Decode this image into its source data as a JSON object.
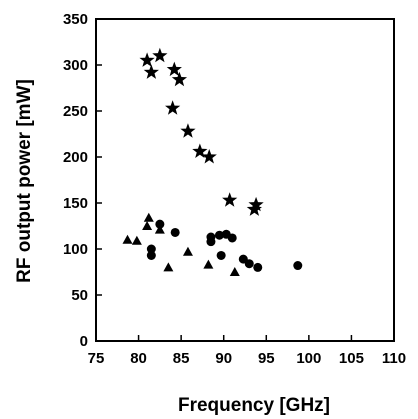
{
  "chart_data": {
    "type": "scatter",
    "xlabel": "Frequency  [GHz]",
    "ylabel": "RF output power  [mW]",
    "xlim": [
      75,
      110
    ],
    "ylim": [
      0,
      350
    ],
    "x_ticks": [
      75,
      80,
      85,
      90,
      95,
      100,
      105,
      110
    ],
    "y_ticks": [
      0,
      50,
      100,
      150,
      200,
      250,
      300,
      350
    ],
    "grid": false,
    "legend": "none",
    "series": [
      {
        "marker": "star",
        "color": "#000000",
        "points": [
          [
            81.0,
            305
          ],
          [
            82.5,
            310
          ],
          [
            81.5,
            292
          ],
          [
            84.2,
            295
          ],
          [
            84.8,
            284
          ],
          [
            84.0,
            253
          ],
          [
            85.8,
            228
          ],
          [
            87.2,
            206
          ],
          [
            88.3,
            200
          ],
          [
            90.7,
            153
          ],
          [
            93.8,
            148
          ],
          [
            93.6,
            143
          ]
        ]
      },
      {
        "marker": "circle",
        "color": "#000000",
        "points": [
          [
            82.5,
            127
          ],
          [
            84.3,
            118
          ],
          [
            81.5,
            100
          ],
          [
            81.5,
            93
          ],
          [
            88.5,
            108
          ],
          [
            88.5,
            113
          ],
          [
            89.5,
            115
          ],
          [
            90.3,
            116
          ],
          [
            91.0,
            112
          ],
          [
            89.7,
            93
          ],
          [
            92.3,
            89
          ],
          [
            93.0,
            84
          ],
          [
            94.0,
            80
          ],
          [
            98.7,
            82
          ]
        ]
      },
      {
        "marker": "triangle",
        "color": "#000000",
        "points": [
          [
            81.2,
            134
          ],
          [
            81.0,
            125
          ],
          [
            82.5,
            121
          ],
          [
            78.7,
            110
          ],
          [
            79.8,
            109
          ],
          [
            83.5,
            80
          ],
          [
            85.8,
            97
          ],
          [
            88.2,
            83
          ],
          [
            91.3,
            75
          ]
        ]
      }
    ]
  }
}
